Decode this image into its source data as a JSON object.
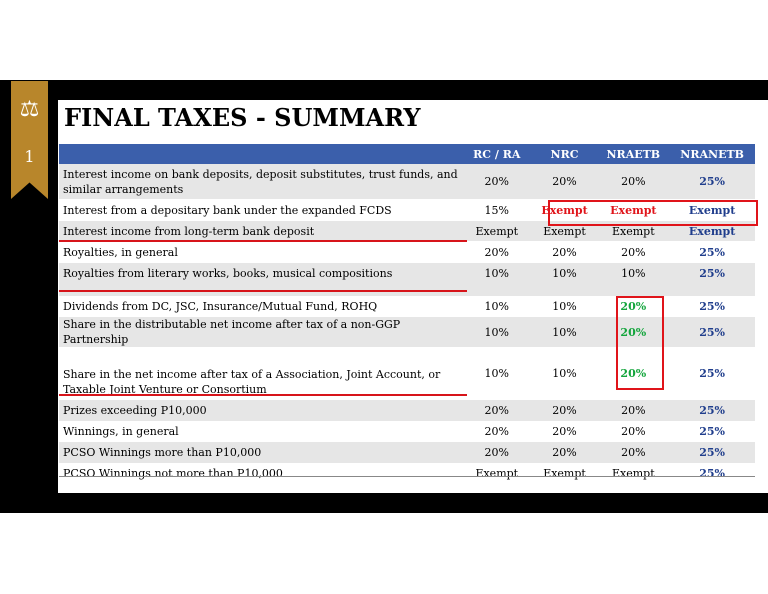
{
  "slide": {
    "title": "FINAL TAXES - SUMMARY",
    "number": "1",
    "ribbon_icon": "scales-of-justice-icon",
    "ribbon_color": "#b8862b",
    "header_color": "#3b5fab",
    "highlight_color": "#e0141a"
  },
  "table": {
    "headers": [
      "",
      "RC / RA",
      "NRC",
      "NRAETB",
      "NRANETB"
    ],
    "rows": [
      {
        "label": "Interest income on bank deposits, deposit substitutes, trust funds, and similar arrangements",
        "rc_ra": "20%",
        "nrc": "20%",
        "nraetb": "20%",
        "nranetb": "25%"
      },
      {
        "label": "Interest from a depositary bank under the expanded FCDS",
        "rc_ra": "15%",
        "nrc": "Exempt",
        "nraetb": "Exempt",
        "nranetb": "Exempt"
      },
      {
        "label": "Interest income from long-term bank deposit",
        "rc_ra": "Exempt",
        "nrc": "Exempt",
        "nraetb": "Exempt",
        "nranetb": "Exempt"
      },
      {
        "label": "Royalties, in general",
        "rc_ra": "20%",
        "nrc": "20%",
        "nraetb": "20%",
        "nranetb": "25%"
      },
      {
        "label": "Royalties from literary works, books, musical compositions",
        "rc_ra": "10%",
        "nrc": "10%",
        "nraetb": "10%",
        "nranetb": "25%"
      },
      {
        "label": "Dividends from DC, JSC, Insurance/Mutual Fund, ROHQ",
        "rc_ra": "10%",
        "nrc": "10%",
        "nraetb": "20%",
        "nranetb": "25%"
      },
      {
        "label": "Share in the distributable net income after tax of a non-GGP Partnership",
        "rc_ra": "10%",
        "nrc": "10%",
        "nraetb": "20%",
        "nranetb": "25%"
      },
      {
        "label": "Share in the net income after tax of a Association, Joint Account, or Taxable Joint Venture or Consortium",
        "rc_ra": "10%",
        "nrc": "10%",
        "nraetb": "20%",
        "nranetb": "25%"
      },
      {
        "label": "Prizes exceeding P10,000",
        "rc_ra": "20%",
        "nrc": "20%",
        "nraetb": "20%",
        "nranetb": "25%"
      },
      {
        "label": "Winnings, in general",
        "rc_ra": "20%",
        "nrc": "20%",
        "nraetb": "20%",
        "nranetb": "25%"
      },
      {
        "label": "PCSO Winnings more than P10,000",
        "rc_ra": "20%",
        "nrc": "20%",
        "nraetb": "20%",
        "nranetb": "25%"
      },
      {
        "label": "PCSO Winnings not more than P10,000",
        "rc_ra": "Exempt",
        "nrc": "Exempt",
        "nraetb": "Exempt",
        "nranetb": "25%"
      }
    ]
  }
}
